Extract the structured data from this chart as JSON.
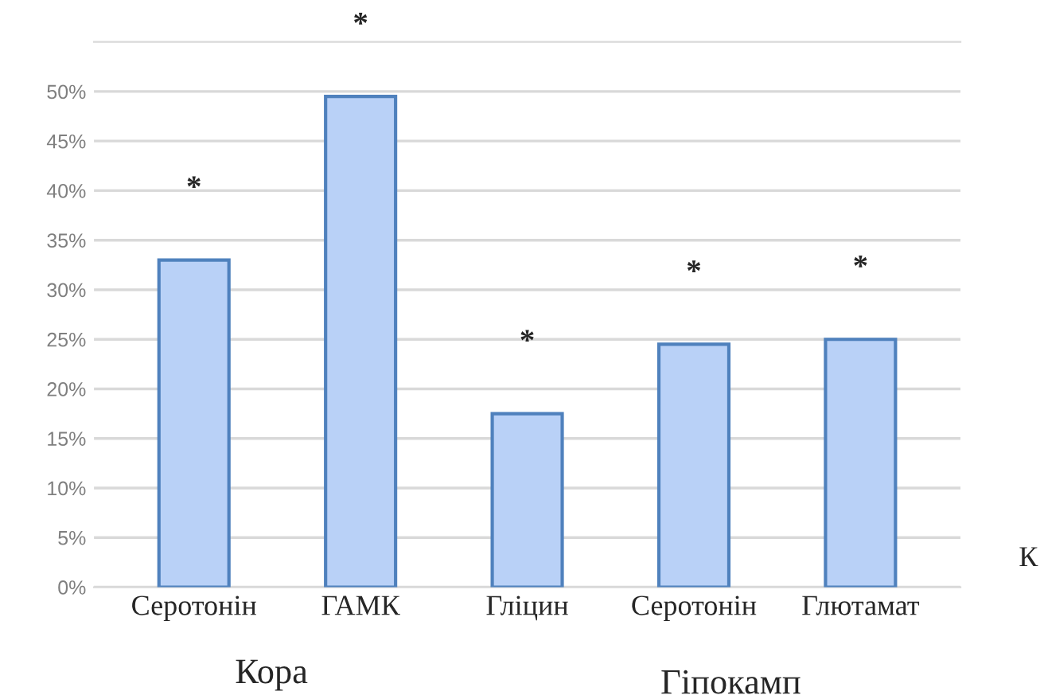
{
  "chart_data": {
    "type": "bar",
    "categories": [
      "Серотонін",
      "ГАМК",
      "Гліцин",
      "Серотонін",
      "Глютамат"
    ],
    "values": [
      33,
      49.5,
      17.5,
      24.5,
      25
    ],
    "color": "#b9d1f7",
    "ylim": [
      0,
      55
    ],
    "yticks": [
      {
        "value": 0,
        "label": "0%"
      },
      {
        "value": 5,
        "label": "5%"
      },
      {
        "value": 10,
        "label": "10%"
      },
      {
        "value": 15,
        "label": "15%"
      },
      {
        "value": 20,
        "label": "20%"
      },
      {
        "value": 25,
        "label": "25%"
      },
      {
        "value": 30,
        "label": "30%"
      },
      {
        "value": 35,
        "label": "35%"
      },
      {
        "value": 40,
        "label": "40%"
      },
      {
        "value": 45,
        "label": "45%"
      },
      {
        "value": 50,
        "label": "50%"
      }
    ],
    "grid": "y",
    "annotations": [
      "*",
      "*",
      "*",
      "*",
      "*",
      "Кора",
      "Гіпокамп",
      "К"
    ]
  }
}
